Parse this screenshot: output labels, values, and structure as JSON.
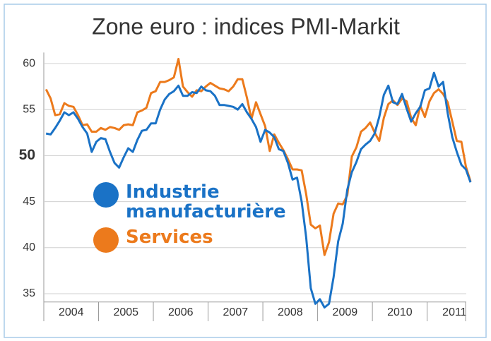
{
  "chart_data": {
    "type": "line",
    "title": "Zone euro : indices PMI-Markit",
    "title_color": "#2f8ad3",
    "categories": [
      null,
      null,
      null,
      null,
      null,
      null,
      "2004",
      null,
      null,
      null,
      null,
      null,
      null,
      null,
      null,
      null,
      null,
      null,
      "2005",
      null,
      null,
      null,
      null,
      null,
      null,
      null,
      null,
      null,
      null,
      null,
      "2006",
      null,
      null,
      null,
      null,
      null,
      null,
      null,
      null,
      null,
      null,
      null,
      "2007",
      null,
      null,
      null,
      null,
      null,
      null,
      null,
      null,
      null,
      null,
      null,
      "2008",
      null,
      null,
      null,
      null,
      null,
      null,
      null,
      null,
      null,
      null,
      null,
      "2009",
      null,
      null,
      null,
      null,
      null,
      null,
      null,
      null,
      null,
      null,
      null,
      "2010",
      null,
      null,
      null,
      null,
      null,
      null,
      null,
      null,
      null,
      null,
      null,
      "2011",
      null,
      null,
      null
    ],
    "series": [
      {
        "name": "Industrie manufacturière",
        "color": "#1a72c6",
        "values": [
          52.4,
          52.3,
          53.0,
          53.8,
          54.7,
          54.4,
          54.7,
          54.0,
          53.1,
          52.4,
          50.4,
          51.5,
          51.9,
          51.8,
          50.4,
          49.2,
          48.7,
          49.8,
          50.8,
          50.4,
          51.7,
          52.7,
          52.8,
          53.5,
          53.5,
          55.0,
          56.1,
          56.7,
          57.0,
          57.6,
          56.5,
          56.5,
          56.9,
          56.8,
          57.5,
          57.1,
          57.0,
          56.5,
          55.5,
          55.5,
          55.4,
          55.3,
          55.0,
          55.6,
          54.7,
          54.0,
          53.1,
          51.5,
          52.8,
          52.5,
          52.0,
          50.7,
          50.5,
          49.2,
          47.4,
          47.6,
          45.0,
          41.1,
          35.6,
          33.9,
          34.4,
          33.5,
          33.9,
          36.8,
          40.7,
          42.6,
          46.3,
          48.2,
          49.3,
          50.7,
          51.2,
          51.6,
          52.4,
          54.2,
          56.6,
          57.6,
          55.8,
          55.6,
          56.7,
          55.1,
          53.7,
          54.6,
          55.3,
          57.1,
          57.3,
          59.0,
          57.5,
          58.0,
          54.6,
          52.0,
          50.4,
          49.0,
          48.5,
          47.1
        ]
      },
      {
        "name": "Services",
        "color": "#ec7a1c",
        "values": [
          57.2,
          56.2,
          54.4,
          54.5,
          55.7,
          55.4,
          55.3,
          54.4,
          53.3,
          53.4,
          52.6,
          52.6,
          53.0,
          52.8,
          53.1,
          53.0,
          52.8,
          53.3,
          53.4,
          53.3,
          54.7,
          54.9,
          55.2,
          56.8,
          57.0,
          58.0,
          58.0,
          58.2,
          58.5,
          60.5,
          57.5,
          56.9,
          56.4,
          57.1,
          57.0,
          57.5,
          57.9,
          57.6,
          57.3,
          57.2,
          57.0,
          57.5,
          58.3,
          58.3,
          56.3,
          54.0,
          55.8,
          54.5,
          53.2,
          50.5,
          52.3,
          51.4,
          50.6,
          49.6,
          48.5,
          48.5,
          48.4,
          45.8,
          42.5,
          42.1,
          42.4,
          39.2,
          40.6,
          43.7,
          44.8,
          44.7,
          45.7,
          49.9,
          50.9,
          52.6,
          53.0,
          53.6,
          52.5,
          51.6,
          54.1,
          55.6,
          56.0,
          55.5,
          56.2,
          55.9,
          54.1,
          53.3,
          55.4,
          54.2,
          55.9,
          56.8,
          57.2,
          56.7,
          55.8,
          53.7,
          51.6,
          51.5,
          48.8,
          47.2
        ]
      }
    ],
    "ylim": [
      34.4,
      61.2
    ],
    "yticks": [
      35,
      40,
      45,
      50,
      55,
      60
    ],
    "emphasized_ytick": 50,
    "grid": true
  }
}
